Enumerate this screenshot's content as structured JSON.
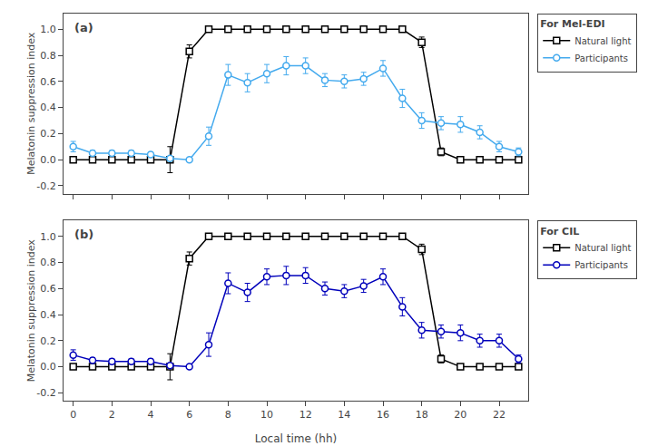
{
  "chart_data": [
    {
      "type": "line",
      "ylabel": "Melatonin suppression index",
      "legend_title": "For Mel-EDI",
      "annotations": [
        "(a)"
      ],
      "x": [
        0,
        1,
        2,
        3,
        4,
        5,
        6,
        7,
        8,
        9,
        10,
        11,
        12,
        13,
        14,
        15,
        16,
        17,
        18,
        19,
        20,
        21,
        22,
        23
      ],
      "series": [
        {
          "name": "Natural light",
          "color": "#000000",
          "marker": "square",
          "line_style": "solid",
          "values": [
            0.0,
            0.0,
            0.0,
            0.0,
            0.0,
            0.0,
            0.83,
            1.0,
            1.0,
            1.0,
            1.0,
            1.0,
            1.0,
            1.0,
            1.0,
            1.0,
            1.0,
            1.0,
            0.9,
            0.06,
            0.0,
            0.0,
            0.0,
            0.0
          ],
          "errors": [
            0.0,
            0.0,
            0.0,
            0.0,
            0.0,
            0.1,
            0.05,
            0.0,
            0.0,
            0.0,
            0.0,
            0.0,
            0.0,
            0.0,
            0.0,
            0.0,
            0.0,
            0.0,
            0.04,
            0.03,
            0.0,
            0.0,
            0.0,
            0.0
          ]
        },
        {
          "name": "Participants",
          "color": "#44AAEE",
          "marker": "circle",
          "line_style": "solid",
          "values": [
            0.1,
            0.05,
            0.05,
            0.05,
            0.04,
            0.01,
            0.0,
            0.18,
            0.65,
            0.59,
            0.66,
            0.72,
            0.72,
            0.61,
            0.6,
            0.62,
            0.7,
            0.47,
            0.3,
            0.28,
            0.27,
            0.21,
            0.1,
            0.06
          ],
          "errors": [
            0.04,
            0.02,
            0.02,
            0.02,
            0.02,
            0.01,
            0.01,
            0.07,
            0.08,
            0.07,
            0.07,
            0.07,
            0.06,
            0.05,
            0.05,
            0.05,
            0.06,
            0.07,
            0.06,
            0.05,
            0.06,
            0.05,
            0.04,
            0.03
          ]
        }
      ],
      "xlim": [
        -0.5,
        23.5
      ],
      "xticks": [
        0,
        2,
        4,
        6,
        8,
        10,
        12,
        14,
        16,
        18,
        20,
        22
      ],
      "ylim": [
        -0.26,
        1.12
      ],
      "yticks": [
        -0.2,
        {
          "value": 0,
          "label": "0.0"
        },
        0.2,
        0.4,
        0.6,
        0.8,
        {
          "value": 1,
          "label": "1.0"
        }
      ],
      "tick_labels": "y",
      "grid": false,
      "legend": "upper right"
    },
    {
      "type": "line",
      "xlabel": "Local time (hh)",
      "ylabel": "Melatonin suppression index",
      "legend_title": "For CIL",
      "annotations": [
        "(b)"
      ],
      "x": [
        0,
        1,
        2,
        3,
        4,
        5,
        6,
        7,
        8,
        9,
        10,
        11,
        12,
        13,
        14,
        15,
        16,
        17,
        18,
        19,
        20,
        21,
        22,
        23
      ],
      "series": [
        {
          "name": "Natural light",
          "color": "#000000",
          "marker": "square",
          "line_style": "solid",
          "values": [
            0.0,
            0.0,
            0.0,
            0.0,
            0.0,
            0.0,
            0.83,
            1.0,
            1.0,
            1.0,
            1.0,
            1.0,
            1.0,
            1.0,
            1.0,
            1.0,
            1.0,
            1.0,
            0.9,
            0.06,
            0.0,
            0.0,
            0.0,
            0.0
          ],
          "errors": [
            0.0,
            0.0,
            0.0,
            0.0,
            0.0,
            0.1,
            0.05,
            0.0,
            0.0,
            0.0,
            0.0,
            0.0,
            0.0,
            0.0,
            0.0,
            0.0,
            0.0,
            0.0,
            0.04,
            0.03,
            0.0,
            0.0,
            0.0,
            0.0
          ]
        },
        {
          "name": "Participants",
          "color": "#0000BB",
          "marker": "circle",
          "line_style": "solid",
          "values": [
            0.09,
            0.05,
            0.04,
            0.04,
            0.04,
            0.01,
            0.0,
            0.17,
            0.64,
            0.57,
            0.69,
            0.7,
            0.7,
            0.6,
            0.58,
            0.62,
            0.69,
            0.46,
            0.28,
            0.27,
            0.26,
            0.2,
            0.2,
            0.06
          ],
          "errors": [
            0.04,
            0.02,
            0.02,
            0.02,
            0.02,
            0.01,
            0.01,
            0.09,
            0.08,
            0.07,
            0.06,
            0.07,
            0.06,
            0.05,
            0.05,
            0.05,
            0.06,
            0.07,
            0.06,
            0.05,
            0.06,
            0.05,
            0.05,
            0.03
          ]
        }
      ],
      "xlim": [
        -0.5,
        23.5
      ],
      "xticks": [
        0,
        2,
        4,
        6,
        8,
        10,
        12,
        14,
        16,
        18,
        20,
        22
      ],
      "ylim": [
        -0.26,
        1.12
      ],
      "yticks": [
        -0.2,
        {
          "value": 0,
          "label": "0.0"
        },
        0.2,
        0.4,
        0.6,
        0.8,
        {
          "value": 1,
          "label": "1.0"
        }
      ],
      "grid": false,
      "legend": "upper right"
    }
  ]
}
